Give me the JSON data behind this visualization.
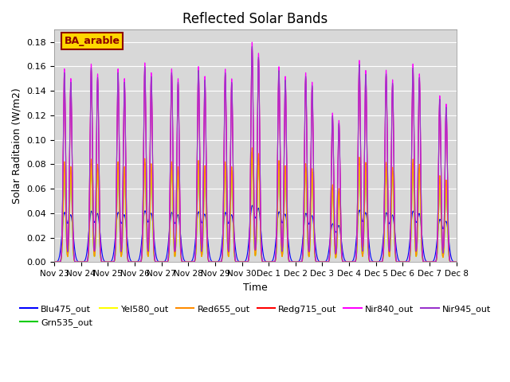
{
  "title": "Reflected Solar Bands",
  "xlabel": "Time",
  "ylabel": "Solar Raditaion (W/m2)",
  "ylim": [
    0,
    0.19
  ],
  "yticks": [
    0.0,
    0.02,
    0.04,
    0.06,
    0.08,
    0.1,
    0.12,
    0.14,
    0.16,
    0.18
  ],
  "annotation_text": "BA_arable",
  "annotation_color": "#8B0000",
  "annotation_bg": "#FFD700",
  "background_color": "#d8d8d8",
  "series": [
    {
      "name": "Blu475_out",
      "color": "#0000FF",
      "scale": 0.25,
      "narrow": false
    },
    {
      "name": "Grn535_out",
      "color": "#00CC00",
      "scale": 0.5,
      "narrow": true
    },
    {
      "name": "Yel580_out",
      "color": "#FFFF00",
      "scale": 0.5,
      "narrow": true
    },
    {
      "name": "Red655_out",
      "color": "#FF8C00",
      "scale": 0.52,
      "narrow": true
    },
    {
      "name": "Redg715_out",
      "color": "#FF0000",
      "scale": 0.97,
      "narrow": true
    },
    {
      "name": "Nir840_out",
      "color": "#FF00FF",
      "scale": 1.0,
      "narrow": true
    },
    {
      "name": "Nir945_out",
      "color": "#9932CC",
      "scale": 0.98,
      "narrow": true
    }
  ],
  "day_peaks": [
    0.158,
    0.162,
    0.158,
    0.163,
    0.158,
    0.16,
    0.158,
    0.18,
    0.16,
    0.155,
    0.122,
    0.165,
    0.157,
    0.162,
    0.136
  ],
  "day_labels": [
    "Nov 23",
    "Nov 24",
    "Nov 25",
    "Nov 26",
    "Nov 27",
    "Nov 28",
    "Nov 29",
    "Nov 30",
    "Dec 1",
    "Dec 2",
    "Dec 3",
    "Dec 4",
    "Dec 5",
    "Dec 6",
    "Dec 7",
    "Dec 8"
  ],
  "legend_fontsize": 8,
  "title_fontsize": 12
}
